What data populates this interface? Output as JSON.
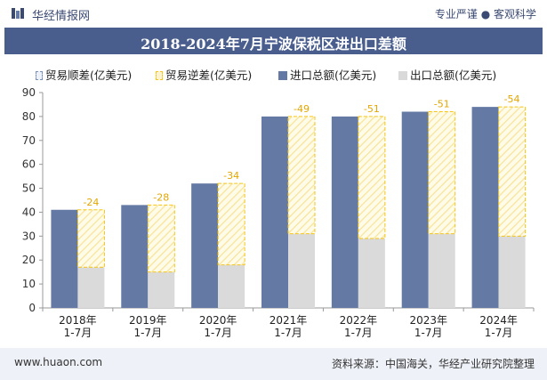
{
  "header": {
    "site_name": "华经情报网",
    "tagline": "专业严谨 ● 客观科学"
  },
  "colors": {
    "brand": "#4a5e8e",
    "export_bar": "#d9d9d9",
    "import_bar": "#6479a3",
    "deficit_border": "#f5c518",
    "deficit_fill": "#fdf3cf"
  },
  "chart_data": {
    "type": "bar",
    "title": "2018-2024年7月宁波保税区进出口差额",
    "categories": [
      "2018年\n1-7月",
      "2019年\n1-7月",
      "2020年\n1-7月",
      "2021年\n1-7月",
      "2022年\n1-7月",
      "2023年\n1-7月",
      "2024年\n1-7月"
    ],
    "legend": [
      "贸易顺差(亿美元)",
      "贸易逆差(亿美元)",
      "进口总额(亿美元)",
      "出口总额(亿美元)"
    ],
    "legend_position": "top",
    "series": [
      {
        "name": "进口总额(亿美元)",
        "values": [
          41,
          43,
          52,
          80,
          80,
          82,
          84
        ]
      },
      {
        "name": "出口总额(亿美元)",
        "values": [
          17,
          15,
          18,
          31,
          29,
          31,
          30
        ]
      },
      {
        "name": "贸易逆差(亿美元)",
        "values": [
          -24,
          -28,
          -34,
          -49,
          -51,
          -51,
          -54
        ]
      },
      {
        "name": "贸易顺差(亿美元)",
        "values": [
          0,
          0,
          0,
          0,
          0,
          0,
          0
        ]
      }
    ],
    "ylim": [
      0,
      90
    ],
    "yticks": [
      0,
      10,
      20,
      30,
      40,
      50,
      60,
      70,
      80,
      90
    ],
    "grid": false
  },
  "footer": {
    "url": "www.huaon.com",
    "source": "资料来源：中国海关，华经产业研究院整理"
  }
}
